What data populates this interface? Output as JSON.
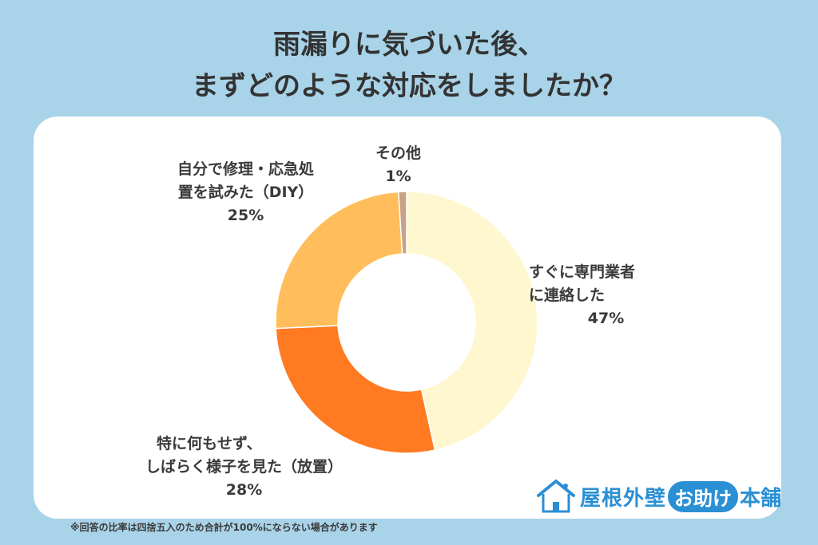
{
  "title": {
    "line1": "雨漏りに気づいた後、",
    "line2": "まずどのような対応をしましたか？"
  },
  "chart_data": {
    "type": "pie",
    "donut": true,
    "categories": [
      "すぐに専門業者に連絡した",
      "特に何もせず、しばらく様子を見た（放置）",
      "自分で修理・応急処置を試みた（DIY）",
      "その他"
    ],
    "values": [
      47,
      28,
      25,
      1
    ],
    "colors": [
      "#fff7cf",
      "#ff7a21",
      "#ffbd5c",
      "#c9a184"
    ],
    "labels": [
      {
        "lines": [
          "すぐに専門業者",
          "に連絡した"
        ],
        "pct": "47%"
      },
      {
        "lines": [
          "特に何もせず、",
          "しばらく様子を見た（放置）"
        ],
        "pct": "28%"
      },
      {
        "lines": [
          "自分で修理・応急処",
          "置を試みた（DIY）"
        ],
        "pct": "25%"
      },
      {
        "lines": [
          "その他"
        ],
        "pct": "1%"
      }
    ]
  },
  "footnote": "※回答の比率は四捨五入のため合計が100%にならない場合があります",
  "brand": {
    "name": "屋根外壁",
    "pill": "お助け",
    "tail": "本舗",
    "primary_color": "#2b8fd4"
  }
}
